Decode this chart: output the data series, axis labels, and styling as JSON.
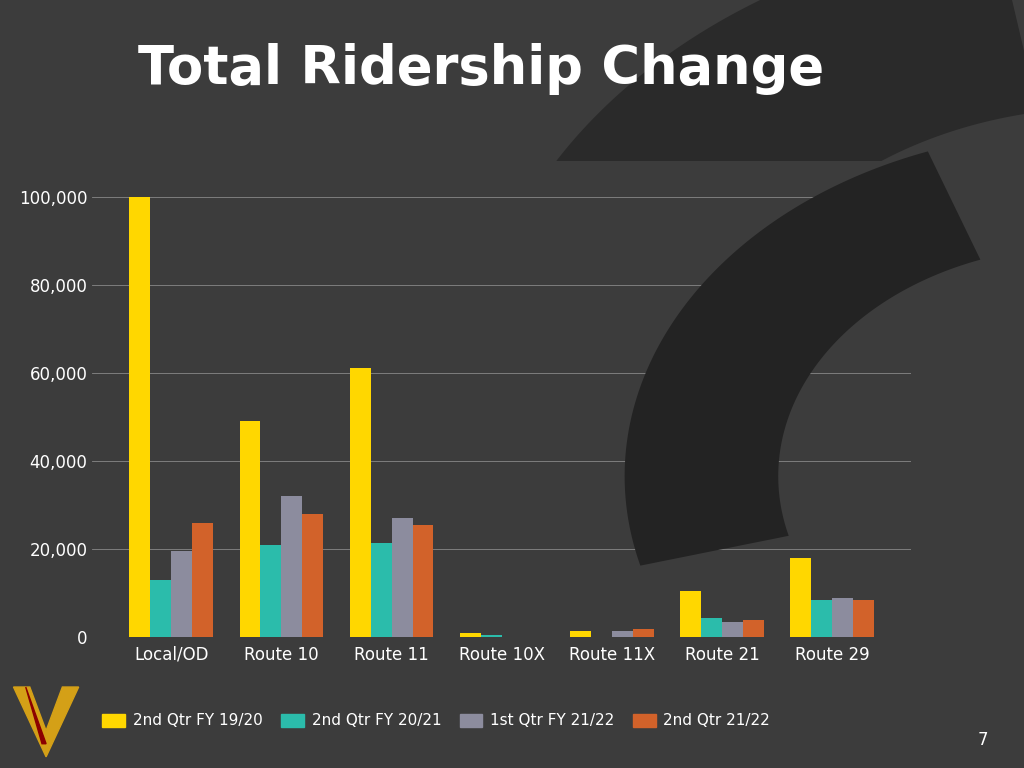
{
  "title": "Total Ridership Change",
  "categories": [
    "Local/OD",
    "Route 10",
    "Route 11",
    "Route 10X",
    "Route 11X",
    "Route 21",
    "Route 29"
  ],
  "series": [
    {
      "label": "2nd Qtr FY 19/20",
      "color": "#FFD700",
      "values": [
        100000,
        49000,
        61000,
        1000,
        1500,
        10500,
        18000
      ]
    },
    {
      "label": "2nd Qtr FY 20/21",
      "color": "#2BBCAB",
      "values": [
        13000,
        21000,
        21500,
        500,
        0,
        4500,
        8500
      ]
    },
    {
      "label": "1st Qtr FY 21/22",
      "color": "#8C8C9E",
      "values": [
        19500,
        32000,
        27000,
        0,
        1500,
        3500,
        9000
      ]
    },
    {
      "label": "2nd Qtr 21/22",
      "color": "#D2622A",
      "values": [
        26000,
        28000,
        25500,
        0,
        2000,
        4000,
        8500
      ]
    }
  ],
  "ylim": [
    0,
    108000
  ],
  "yticks": [
    0,
    20000,
    40000,
    60000,
    80000,
    100000
  ],
  "background_color": "#3C3C3C",
  "plot_bg_color": "#3C3C3C",
  "text_color": "#FFFFFF",
  "grid_color": "#888888",
  "title_fontsize": 38,
  "axis_fontsize": 12,
  "legend_fontsize": 11,
  "bar_width": 0.19,
  "figsize": [
    10.24,
    7.68
  ],
  "dpi": 100,
  "arc_bg_color": "#2A2A2A",
  "arc_darker_color": "#232323"
}
